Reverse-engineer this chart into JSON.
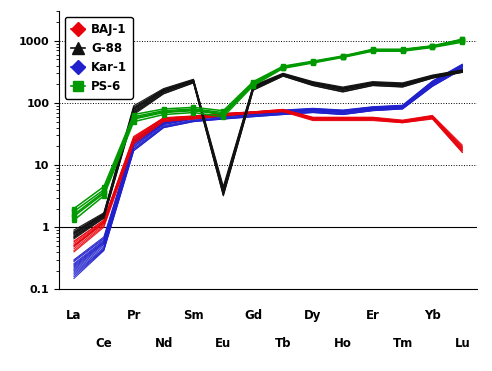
{
  "elements_top": [
    "La",
    "Pr",
    "Sm",
    "Gd",
    "Dy",
    "Er",
    "Yb"
  ],
  "elements_bottom": [
    "Ce",
    "Nd",
    "Eu",
    "Tb",
    "Ho",
    "Tm",
    "Lu"
  ],
  "x_positions_top": [
    0,
    2,
    4,
    6,
    8,
    10,
    12
  ],
  "x_positions_bottom": [
    1,
    3,
    5,
    7,
    9,
    11,
    13
  ],
  "xlim": [
    -0.5,
    13.5
  ],
  "ylim": [
    0.1,
    3000
  ],
  "BAJ1_color": "#e8000a",
  "G88_color": "#111111",
  "Kar1_color": "#2020cc",
  "PS6_color": "#009900",
  "BAJ1_data": [
    [
      0.5,
      1.2,
      25,
      55,
      60,
      65,
      70,
      75,
      55,
      55,
      55,
      50,
      60,
      18
    ],
    [
      0.4,
      1.0,
      22,
      50,
      55,
      62,
      68,
      72,
      52,
      52,
      52,
      48,
      55,
      16
    ],
    [
      0.6,
      1.3,
      28,
      58,
      62,
      68,
      72,
      78,
      58,
      58,
      58,
      52,
      62,
      20
    ],
    [
      0.45,
      1.1,
      24,
      52,
      57,
      63,
      69,
      74,
      54,
      54,
      54,
      49,
      57,
      17
    ],
    [
      0.55,
      1.25,
      27,
      56,
      60,
      66,
      71,
      77,
      57,
      57,
      57,
      51,
      60,
      19
    ],
    [
      0.5,
      1.15,
      26,
      54,
      58,
      64,
      70,
      75,
      56,
      56,
      56,
      50,
      58,
      17
    ],
    [
      0.42,
      1.05,
      23,
      51,
      56,
      62,
      68,
      73,
      53,
      53,
      53,
      48,
      56,
      16
    ],
    [
      0.58,
      1.3,
      29,
      57,
      61,
      67,
      72,
      79,
      59,
      59,
      59,
      53,
      63,
      21
    ],
    [
      0.48,
      1.18,
      25,
      55,
      59,
      65,
      70,
      76,
      56,
      56,
      56,
      50,
      59,
      18
    ],
    [
      0.52,
      1.22,
      27,
      57,
      61,
      66,
      71,
      77,
      57,
      57,
      57,
      51,
      61,
      19
    ]
  ],
  "G88_data": [
    [
      0.7,
      1.5,
      70,
      150,
      220,
      3.5,
      170,
      280,
      200,
      160,
      200,
      190,
      260,
      320
    ],
    [
      0.8,
      1.6,
      80,
      160,
      230,
      4.0,
      180,
      290,
      210,
      170,
      210,
      200,
      270,
      330
    ],
    [
      0.65,
      1.4,
      65,
      140,
      210,
      3.2,
      160,
      270,
      190,
      150,
      190,
      180,
      250,
      310
    ],
    [
      0.75,
      1.55,
      75,
      155,
      225,
      3.7,
      175,
      285,
      205,
      165,
      205,
      195,
      265,
      325
    ],
    [
      0.9,
      1.7,
      90,
      170,
      240,
      4.5,
      190,
      300,
      220,
      180,
      220,
      210,
      280,
      340
    ],
    [
      0.72,
      1.48,
      72,
      148,
      218,
      3.4,
      168,
      278,
      198,
      158,
      198,
      188,
      258,
      318
    ],
    [
      0.85,
      1.65,
      85,
      165,
      235,
      4.2,
      185,
      295,
      215,
      175,
      215,
      205,
      275,
      335
    ],
    [
      0.68,
      1.42,
      68,
      142,
      212,
      3.3,
      162,
      272,
      192,
      152,
      192,
      182,
      252,
      312
    ],
    [
      0.78,
      1.58,
      78,
      158,
      228,
      3.8,
      178,
      288,
      208,
      168,
      208,
      198,
      268,
      328
    ],
    [
      0.82,
      1.62,
      82,
      162,
      232,
      4.1,
      182,
      292,
      212,
      172,
      212,
      202,
      272,
      332
    ]
  ],
  "Kar1_data": [
    [
      0.2,
      0.5,
      20,
      45,
      55,
      60,
      65,
      70,
      75,
      70,
      80,
      85,
      200,
      380
    ],
    [
      0.25,
      0.6,
      22,
      48,
      58,
      63,
      68,
      73,
      78,
      73,
      83,
      88,
      210,
      400
    ],
    [
      0.18,
      0.45,
      18,
      42,
      52,
      57,
      62,
      67,
      72,
      67,
      77,
      82,
      190,
      360
    ],
    [
      0.22,
      0.55,
      21,
      46,
      56,
      61,
      66,
      71,
      76,
      71,
      81,
      86,
      205,
      390
    ],
    [
      0.28,
      0.65,
      24,
      50,
      60,
      65,
      70,
      75,
      80,
      75,
      85,
      90,
      220,
      410
    ],
    [
      0.15,
      0.42,
      17,
      40,
      50,
      55,
      60,
      65,
      70,
      65,
      75,
      80,
      185,
      350
    ],
    [
      0.3,
      0.7,
      25,
      52,
      62,
      67,
      72,
      77,
      82,
      77,
      87,
      92,
      225,
      420
    ],
    [
      0.23,
      0.57,
      22,
      47,
      57,
      62,
      67,
      72,
      77,
      72,
      82,
      87,
      208,
      395
    ],
    [
      0.19,
      0.47,
      19,
      43,
      53,
      58,
      63,
      68,
      73,
      68,
      78,
      83,
      195,
      370
    ],
    [
      0.26,
      0.62,
      23,
      49,
      59,
      64,
      69,
      74,
      79,
      74,
      84,
      89,
      215,
      405
    ],
    [
      0.21,
      0.53,
      20,
      45,
      55,
      60,
      65,
      70,
      75,
      70,
      80,
      85,
      200,
      380
    ],
    [
      0.24,
      0.58,
      22,
      47,
      57,
      62,
      67,
      72,
      77,
      72,
      82,
      87,
      207,
      392
    ],
    [
      0.17,
      0.44,
      18,
      41,
      51,
      56,
      61,
      66,
      71,
      66,
      76,
      81,
      188,
      355
    ],
    [
      0.29,
      0.67,
      24,
      51,
      61,
      66,
      71,
      76,
      81,
      76,
      86,
      91,
      222,
      415
    ],
    [
      0.16,
      0.43,
      17,
      40,
      50,
      55,
      60,
      65,
      70,
      65,
      75,
      80,
      185,
      350
    ]
  ],
  "PS6_data": [
    [
      1.5,
      3.5,
      55,
      70,
      75,
      65,
      200,
      370,
      450,
      550,
      700,
      700,
      800,
      1000
    ],
    [
      1.8,
      4.0,
      60,
      75,
      80,
      70,
      210,
      380,
      460,
      560,
      720,
      720,
      820,
      1050
    ],
    [
      1.3,
      3.2,
      50,
      65,
      70,
      60,
      190,
      360,
      440,
      540,
      680,
      680,
      780,
      950
    ],
    [
      2.0,
      4.5,
      65,
      80,
      85,
      75,
      220,
      390,
      470,
      570,
      730,
      730,
      830,
      1060
    ],
    [
      1.6,
      3.7,
      57,
      72,
      77,
      67,
      205,
      375,
      455,
      555,
      710,
      710,
      810,
      1020
    ]
  ],
  "dotted_grid": [
    10,
    100,
    1000
  ],
  "solid_grid": [
    1
  ],
  "legend_labels": [
    "BAJ-1",
    "G-88",
    "Kar-1",
    "PS-6"
  ],
  "legend_markers": [
    "D",
    "^",
    "D",
    "s"
  ],
  "legend_colors": [
    "#e8000a",
    "#111111",
    "#2020cc",
    "#009900"
  ],
  "fontsize_ticks": 8,
  "fontsize_legend": 8.5
}
